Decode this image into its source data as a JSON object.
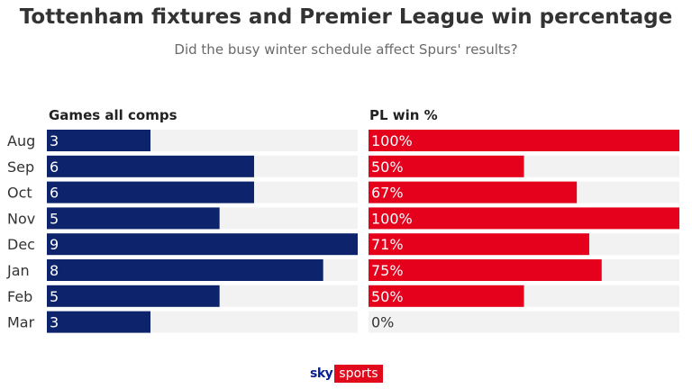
{
  "header": {
    "title": "Tottenham fixtures and Premier League win percentage",
    "subtitle": "Did the busy winter schedule affect Spurs' results?"
  },
  "chart_data": [
    {
      "type": "bar",
      "orientation": "horizontal",
      "panel_label": "Games all comps",
      "categories": [
        "Aug",
        "Sep",
        "Oct",
        "Nov",
        "Dec",
        "Jan",
        "Feb",
        "Mar"
      ],
      "values": [
        3,
        6,
        6,
        5,
        9,
        8,
        5,
        3
      ],
      "labels": [
        "3",
        "6",
        "6",
        "5",
        "9",
        "8",
        "5",
        "3"
      ],
      "xlim": [
        0,
        9
      ],
      "color": "#0d236b",
      "track_color": "#f2f2f2"
    },
    {
      "type": "bar",
      "orientation": "horizontal",
      "panel_label": "PL win %",
      "categories": [
        "Aug",
        "Sep",
        "Oct",
        "Nov",
        "Dec",
        "Jan",
        "Feb",
        "Mar"
      ],
      "values": [
        100,
        50,
        67,
        100,
        71,
        75,
        50,
        0
      ],
      "labels": [
        "100%",
        "50%",
        "67%",
        "100%",
        "71%",
        "75%",
        "50%",
        "0%"
      ],
      "xlim": [
        0,
        100
      ],
      "color": "#e5001c",
      "track_color": "#f2f2f2"
    }
  ],
  "footer": {
    "logo_sky": "sky",
    "logo_sports": "sports"
  }
}
